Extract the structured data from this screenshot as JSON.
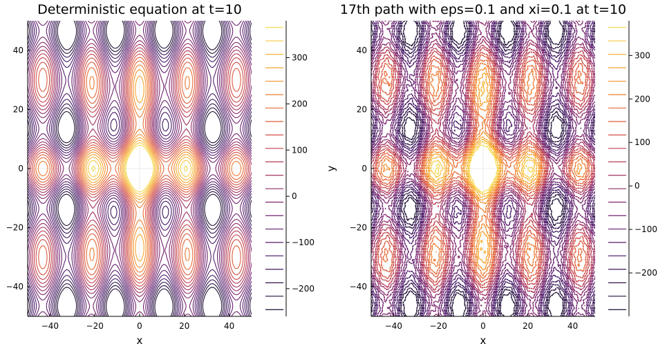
{
  "chart_data": [
    {
      "type": "contour",
      "title": "Deterministic equation at t=10",
      "xlabel": "x",
      "ylabel": "",
      "xlim": [
        -50,
        50
      ],
      "ylim": [
        -50,
        50
      ],
      "xticks": [
        -40,
        -20,
        0,
        20,
        40
      ],
      "yticks": [
        -40,
        -20,
        0,
        20,
        40
      ],
      "xtick_labels": [
        "−40",
        "−20",
        "0",
        "20",
        "40"
      ],
      "ytick_labels": [
        "−40",
        "−20",
        "0",
        "20",
        "40"
      ],
      "grid": true,
      "colormap": "inferno-like (dark purple → orange → yellow)",
      "colorbar": {
        "range": [
          -260,
          380
        ],
        "ticks": [
          -200,
          -100,
          0,
          100,
          200,
          300
        ],
        "tick_labels": [
          "−200",
          "−100",
          "0",
          "100",
          "200",
          "300"
        ]
      }
    },
    {
      "type": "contour",
      "title": "17th path with eps=0.1 and xi=0.1 at t=10",
      "xlabel": "x",
      "ylabel": "y",
      "xlim": [
        -50,
        50
      ],
      "ylim": [
        -50,
        50
      ],
      "xticks": [
        -40,
        -20,
        0,
        20,
        40
      ],
      "yticks": [
        -40,
        -20,
        0,
        20,
        40
      ],
      "xtick_labels": [
        "−40",
        "−20",
        "0",
        "20",
        "40"
      ],
      "ytick_labels": [
        "−40",
        "−20",
        "0",
        "20",
        "40"
      ],
      "grid": true,
      "colormap": "inferno-like (dark purple → orange → yellow)",
      "noisy": true,
      "colorbar": {
        "range": [
          -300,
          380
        ],
        "ticks": [
          -200,
          -100,
          0,
          100,
          200,
          300
        ],
        "tick_labels": [
          "−200",
          "−100",
          "0",
          "100",
          "200",
          "300"
        ]
      }
    }
  ]
}
